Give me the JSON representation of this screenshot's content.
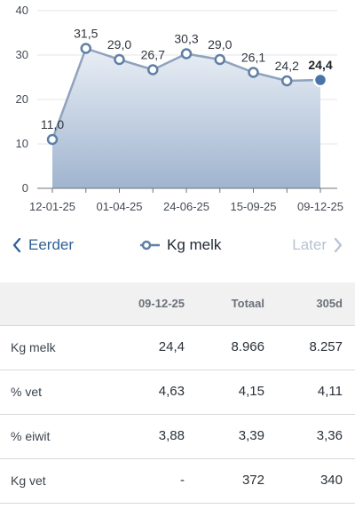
{
  "chart_data": {
    "type": "area",
    "x": [
      "12-01-25",
      "",
      "01-04-25",
      "",
      "24-06-25",
      "",
      "15-09-25",
      "",
      "09-12-25"
    ],
    "series": [
      {
        "values": [
          11.0,
          31.5,
          29.0,
          26.7,
          30.3,
          29.0,
          26.1,
          24.2,
          24.4
        ],
        "labels": [
          "11,0",
          "31,5",
          "29,0",
          "26,7",
          "30,3",
          "29,0",
          "26,1",
          "24,2",
          "24,4"
        ]
      }
    ],
    "y_ticks": [
      "0",
      "10",
      "20",
      "30",
      "40"
    ],
    "x_ticks": [
      "12-01-25",
      "01-04-25",
      "24-06-25",
      "15-09-25",
      "09-12-25"
    ],
    "ylim": [
      0,
      40
    ],
    "grid": true,
    "highlight_last": true,
    "colors": {
      "line": "#8fa3bd",
      "marker_fill": "#ffffff",
      "marker_stroke": "#5f7fa5",
      "area_top": "#e9eef5",
      "area_bottom": "#9fb4cf",
      "last_marker": "#4a74a8",
      "grid": "#e3e6ea",
      "axis": "#6d747c"
    }
  },
  "nav": {
    "prev_label": "Eerder",
    "next_label": "Later",
    "legend_label": "Kg melk",
    "prev_icon": "chevron-left-icon",
    "next_icon": "chevron-right-icon",
    "legend_icon": "line-marker-icon",
    "colors": {
      "prev": "#2f5f95",
      "next_disabled": "#b6c3d2"
    }
  },
  "table": {
    "headers": [
      "",
      "09-12-25",
      "Totaal",
      "305d"
    ],
    "rows": [
      {
        "label": "Kg melk",
        "values": [
          "24,4",
          "8.966",
          "8.257"
        ]
      },
      {
        "label": "% vet",
        "values": [
          "4,63",
          "4,15",
          "4,11"
        ]
      },
      {
        "label": "% eiwit",
        "values": [
          "3,88",
          "3,39",
          "3,36"
        ]
      },
      {
        "label": "Kg vet",
        "values": [
          "-",
          "372",
          "340"
        ]
      }
    ]
  }
}
